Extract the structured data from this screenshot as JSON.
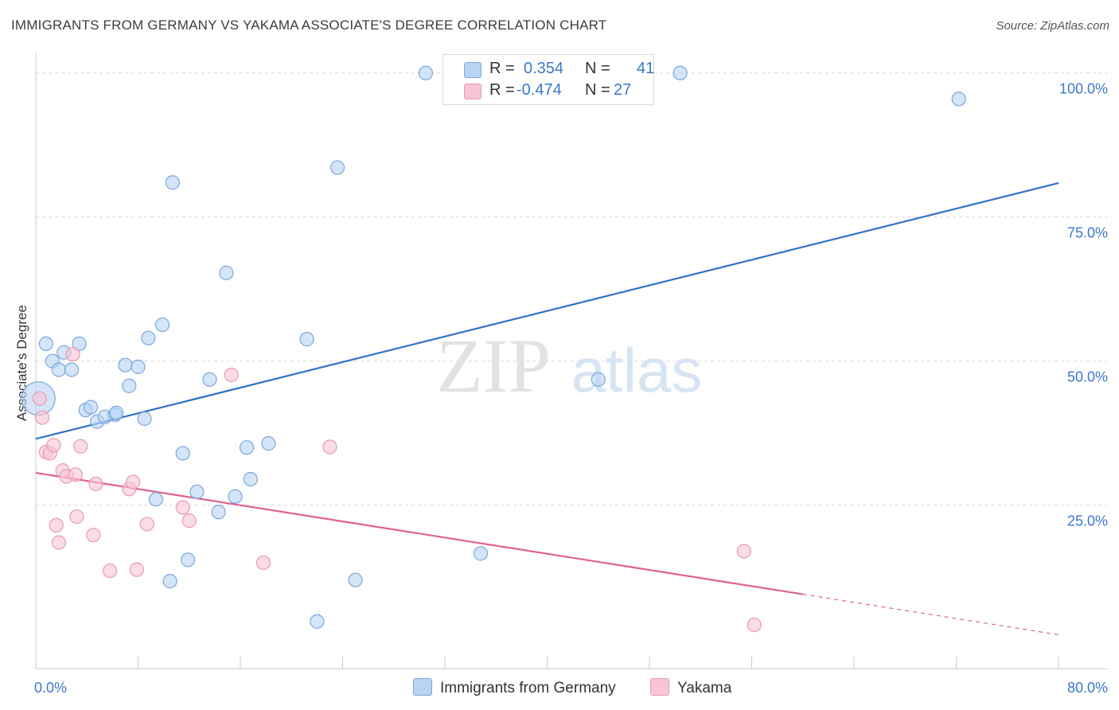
{
  "title": "IMMIGRANTS FROM GERMANY VS YAKAMA ASSOCIATE'S DEGREE CORRELATION CHART",
  "source": "Source: ZipAtlas.com",
  "watermark": {
    "zip": "ZIP",
    "atlas": "atlas"
  },
  "colors": {
    "blue_fill": "#b8d3f4",
    "blue_stroke": "#7aa7dc",
    "blue_line": "#2f72c9",
    "pink_fill": "#f7c5d3",
    "pink_stroke": "#e89ab2",
    "pink_line": "#e0628e",
    "axis_text": "#3a78c9",
    "grid": "#d9d9d9"
  },
  "legend": {
    "r_label": "R =",
    "n_label": "N =",
    "rows": [
      {
        "r": "0.354",
        "n": "41",
        "color": "#b8d3f4",
        "stroke": "#7aa7dc"
      },
      {
        "r": "-0.474",
        "n": "27",
        "color": "#f7c5d3",
        "stroke": "#e89ab2"
      }
    ]
  },
  "bottom_legend": [
    {
      "label": "Immigrants from Germany",
      "color": "#b8d3f4",
      "stroke": "#7aa7dc"
    },
    {
      "label": "Yakama",
      "color": "#f7c5d3",
      "stroke": "#e89ab2"
    }
  ],
  "chart_data": {
    "type": "scatter",
    "title": "IMMIGRANTS FROM GERMANY VS YAKAMA ASSOCIATE'S DEGREE CORRELATION CHART",
    "xlabel": "",
    "ylabel": "Associate's Degree",
    "xlim": [
      0,
      80
    ],
    "ylim": [
      -2,
      103
    ],
    "x_tick_labels": [
      "0.0%",
      "80.0%"
    ],
    "y_ticks": [
      25,
      50,
      75,
      100
    ],
    "y_tick_labels": [
      "25.0%",
      "50.0%",
      "75.0%",
      "100.0%"
    ],
    "grid": true,
    "series": [
      {
        "name": "Immigrants from Germany",
        "color": "#b8d3f4",
        "stroke": "#7aa7dc",
        "trend": {
          "x": [
            0,
            80
          ],
          "y": [
            36.5,
            80.9
          ],
          "dashed_from": null
        },
        "points": [
          [
            0.2,
            43.5,
            "big"
          ],
          [
            0.8,
            53
          ],
          [
            1.3,
            50
          ],
          [
            1.8,
            48.5
          ],
          [
            2.2,
            51.5
          ],
          [
            2.8,
            48.5
          ],
          [
            3.4,
            53
          ],
          [
            3.9,
            41.5
          ],
          [
            4.3,
            42
          ],
          [
            4.8,
            39.5
          ],
          [
            5.4,
            40.3
          ],
          [
            6.2,
            40.7
          ],
          [
            6.3,
            41
          ],
          [
            7,
            49.3
          ],
          [
            7.3,
            45.7
          ],
          [
            8,
            49
          ],
          [
            8.5,
            40
          ],
          [
            8.8,
            54
          ],
          [
            9.4,
            26
          ],
          [
            9.9,
            56.3
          ],
          [
            10.5,
            11.8
          ],
          [
            10.7,
            81
          ],
          [
            11.5,
            34
          ],
          [
            11.9,
            15.5
          ],
          [
            12.6,
            27.3
          ],
          [
            13.6,
            46.8
          ],
          [
            14.3,
            23.8
          ],
          [
            14.9,
            65.3
          ],
          [
            15.6,
            26.5
          ],
          [
            16.5,
            35
          ],
          [
            16.8,
            29.5
          ],
          [
            18.2,
            35.7
          ],
          [
            21.2,
            53.8
          ],
          [
            22,
            4.8
          ],
          [
            23.6,
            83.6
          ],
          [
            25,
            12
          ],
          [
            30.5,
            100
          ],
          [
            34.8,
            16.6
          ],
          [
            44,
            46.8
          ],
          [
            50.4,
            100
          ],
          [
            72.2,
            95.5
          ]
        ]
      },
      {
        "name": "Yakama",
        "color": "#f7c5d3",
        "stroke": "#e89ab2",
        "trend": {
          "x": [
            0,
            80
          ],
          "y": [
            30.6,
            2.5
          ],
          "dashed_from": 60
        },
        "points": [
          [
            0.3,
            43.5
          ],
          [
            0.5,
            40.2
          ],
          [
            0.8,
            34.2
          ],
          [
            1.1,
            34
          ],
          [
            1.4,
            35.4
          ],
          [
            1.6,
            21.5
          ],
          [
            1.8,
            18.5
          ],
          [
            2.1,
            31
          ],
          [
            2.4,
            30
          ],
          [
            2.9,
            51.2
          ],
          [
            3.1,
            30.3
          ],
          [
            3.2,
            23
          ],
          [
            3.5,
            35.2
          ],
          [
            4.5,
            19.8
          ],
          [
            4.7,
            28.7
          ],
          [
            5.8,
            13.6
          ],
          [
            7.3,
            27.8
          ],
          [
            7.6,
            29
          ],
          [
            7.9,
            13.8
          ],
          [
            8.7,
            21.7
          ],
          [
            11.5,
            24.6
          ],
          [
            12,
            22.3
          ],
          [
            15.3,
            47.6
          ],
          [
            17.8,
            15
          ],
          [
            23,
            35.1
          ],
          [
            55.4,
            17
          ],
          [
            56.2,
            4.2
          ]
        ]
      }
    ]
  }
}
